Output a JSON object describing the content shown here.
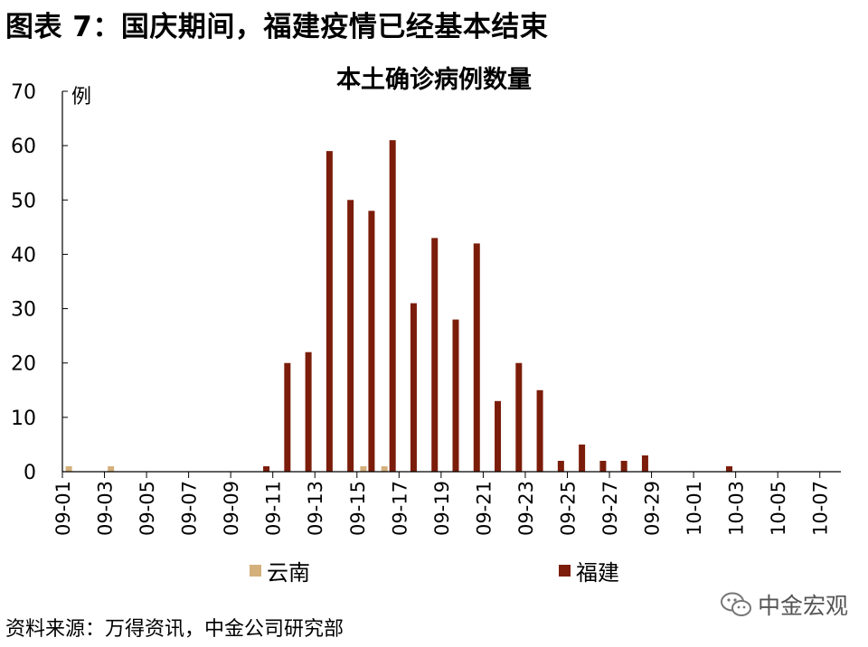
{
  "header": {
    "title": "图表 7：国庆期间，福建疫情已经基本结束"
  },
  "footer": {
    "source": "资料来源：万得资讯，中金公司研究部"
  },
  "watermark": {
    "text": "中金宏观",
    "icon": "wechat-icon"
  },
  "colors": {
    "yunnan": "#D4B07C",
    "fujian": "#7B1D0A",
    "axis": "#000000"
  },
  "chart_data": {
    "type": "bar",
    "title": "本土确诊病例数量",
    "ylabel": "例",
    "xlabel": "",
    "ylim": [
      0,
      70
    ],
    "yticks": [
      0,
      10,
      20,
      30,
      40,
      50,
      60,
      70
    ],
    "grid": false,
    "legend_position": "bottom",
    "categories": [
      "09-01",
      "09-02",
      "09-03",
      "09-04",
      "09-05",
      "09-06",
      "09-07",
      "09-08",
      "09-09",
      "09-10",
      "09-11",
      "09-12",
      "09-13",
      "09-14",
      "09-15",
      "09-16",
      "09-17",
      "09-18",
      "09-19",
      "09-20",
      "09-21",
      "09-22",
      "09-23",
      "09-24",
      "09-25",
      "09-26",
      "09-27",
      "09-28",
      "09-29",
      "09-30",
      "10-01",
      "10-02",
      "10-03",
      "10-04",
      "10-05",
      "10-06",
      "10-07"
    ],
    "x_tick_labels": [
      "09-01",
      "09-03",
      "09-05",
      "09-07",
      "09-09",
      "09-11",
      "09-13",
      "09-15",
      "09-17",
      "09-19",
      "09-21",
      "09-23",
      "09-25",
      "09-27",
      "09-29",
      "10-01",
      "10-03",
      "10-05",
      "10-07"
    ],
    "series": [
      {
        "name": "云南",
        "color": "#D4B07C",
        "values": [
          1,
          0,
          1,
          0,
          0,
          0,
          0,
          0,
          0,
          0,
          0,
          0,
          0,
          0,
          1,
          1,
          0,
          0,
          0,
          0,
          0,
          0,
          0,
          0,
          0,
          0,
          0,
          0,
          0,
          0,
          0,
          0,
          0,
          0,
          0,
          0,
          0
        ]
      },
      {
        "name": "福建",
        "color": "#7B1D0A",
        "values": [
          0,
          0,
          0,
          0,
          0,
          0,
          0,
          0,
          0,
          1,
          20,
          22,
          59,
          50,
          48,
          61,
          31,
          43,
          28,
          42,
          13,
          20,
          15,
          2,
          5,
          2,
          2,
          3,
          0,
          0,
          0,
          1,
          0,
          0,
          0,
          0,
          0
        ]
      }
    ]
  }
}
